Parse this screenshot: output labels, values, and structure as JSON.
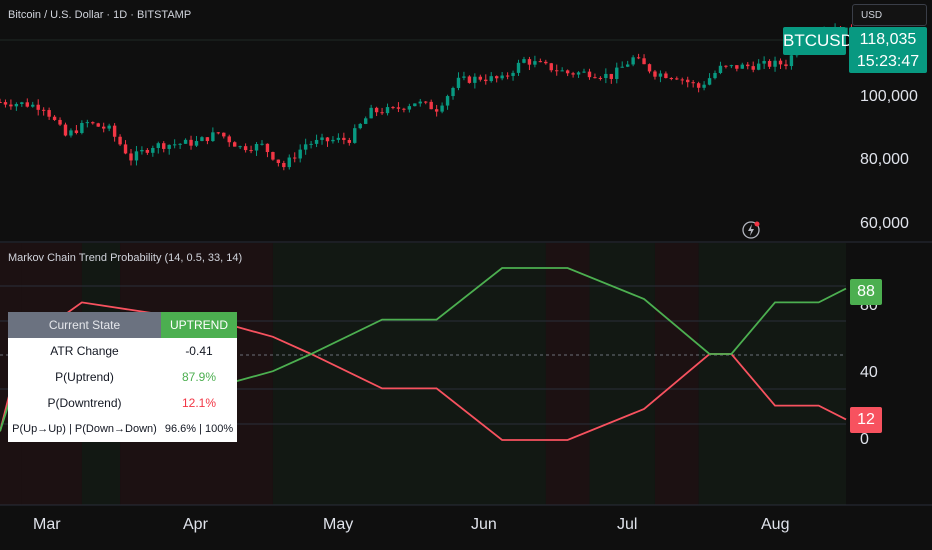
{
  "chart_title": "Bitcoin / U.S. Dollar · 1D · BITSTAMP",
  "currency": "USD",
  "symbol": "BTCUSD",
  "last_price": "118,035",
  "countdown": "15:23:47",
  "colors": {
    "up": "#089981",
    "down": "#f23645",
    "bull_line": "#4caf50",
    "bear_line": "#f7525f"
  },
  "price_axis": [
    "100,000",
    "80,000",
    "60,000"
  ],
  "indicator": {
    "title": "Markov Chain Trend Probability (14, 0.5, 33, 14)",
    "axis": [
      "80",
      "40",
      "0"
    ],
    "uptrend_badge": "88",
    "downtrend_badge": "12"
  },
  "x_axis": [
    "Mar",
    "Apr",
    "May",
    "Jun",
    "Jul",
    "Aug"
  ],
  "state_table": {
    "header_label": "Current State",
    "header_value": "UPTREND",
    "rows": [
      {
        "label": "ATR Change",
        "value": "-0.41"
      },
      {
        "label": "P(Uptrend)",
        "value": "87.9%"
      },
      {
        "label": "P(Downtrend)",
        "value": "12.1%"
      },
      {
        "label": "P(Up→Up) | P(Down→Down)",
        "value": "96.6% | 100%"
      }
    ]
  },
  "chart_data": {
    "type": "line",
    "price_ylim": [
      55000,
      125000
    ],
    "indicator_ylim": [
      0,
      100
    ],
    "price_path": [
      [
        "2025-02-14",
        96500
      ],
      [
        "2025-02-18",
        96000
      ],
      [
        "2025-02-22",
        95000
      ],
      [
        "2025-02-26",
        86000
      ],
      [
        "2025-03-02",
        90000
      ],
      [
        "2025-03-06",
        88000
      ],
      [
        "2025-03-10",
        79000
      ],
      [
        "2025-03-14",
        83000
      ],
      [
        "2025-03-18",
        83500
      ],
      [
        "2025-03-22",
        84000
      ],
      [
        "2025-03-26",
        87000
      ],
      [
        "2025-03-30",
        82500
      ],
      [
        "2025-04-03",
        83000
      ],
      [
        "2025-04-07",
        76500
      ],
      [
        "2025-04-11",
        83500
      ],
      [
        "2025-04-15",
        84500
      ],
      [
        "2025-04-19",
        85000
      ],
      [
        "2025-04-23",
        93500
      ],
      [
        "2025-04-27",
        94000
      ],
      [
        "2025-05-01",
        96500
      ],
      [
        "2025-05-05",
        94500
      ],
      [
        "2025-05-09",
        103000
      ],
      [
        "2025-05-13",
        104000
      ],
      [
        "2025-05-17",
        103500
      ],
      [
        "2025-05-21",
        109500
      ],
      [
        "2025-05-25",
        107500
      ],
      [
        "2025-05-29",
        105500
      ],
      [
        "2025-06-02",
        105500
      ],
      [
        "2025-06-06",
        104500
      ],
      [
        "2025-06-10",
        110000
      ],
      [
        "2025-06-14",
        105500
      ],
      [
        "2025-06-18",
        104500
      ],
      [
        "2025-06-22",
        101000
      ],
      [
        "2025-06-26",
        107000
      ],
      [
        "2025-06-30",
        107500
      ],
      [
        "2025-07-04",
        108000
      ],
      [
        "2025-07-08",
        108500
      ],
      [
        "2025-07-12",
        117500
      ],
      [
        "2025-07-16",
        119000
      ],
      [
        "2025-07-20",
        118000
      ],
      [
        "2025-07-24",
        118000
      ]
    ],
    "series": [
      {
        "values": [
          [
            0,
            5
          ],
          [
            4,
            55
          ],
          [
            15,
            80
          ],
          [
            42,
            67
          ],
          [
            50,
            60
          ],
          [
            57,
            50
          ],
          [
            70,
            30
          ],
          [
            80,
            30
          ],
          [
            92,
            0
          ],
          [
            104,
            0
          ],
          [
            118,
            18
          ],
          [
            130,
            50
          ],
          [
            134,
            50
          ],
          [
            142,
            20
          ],
          [
            150,
            20
          ],
          [
            155,
            12
          ]
        ]
      },
      {
        "values": [
          [
            0,
            5
          ],
          [
            4,
            45
          ],
          [
            15,
            20
          ],
          [
            42,
            33
          ],
          [
            50,
            40
          ],
          [
            57,
            50
          ],
          [
            70,
            70
          ],
          [
            80,
            70
          ],
          [
            92,
            100
          ],
          [
            104,
            100
          ],
          [
            118,
            82
          ],
          [
            130,
            50
          ],
          [
            134,
            50
          ],
          [
            142,
            80
          ],
          [
            150,
            80
          ],
          [
            155,
            88
          ]
        ]
      }
    ],
    "regimes": [
      {
        "from": 0,
        "to": 4,
        "state": "down"
      },
      {
        "from": 4,
        "to": 15,
        "state": "down"
      },
      {
        "from": 15,
        "to": 22,
        "state": "up"
      },
      {
        "from": 22,
        "to": 50,
        "state": "down"
      },
      {
        "from": 50,
        "to": 100,
        "state": "up"
      },
      {
        "from": 100,
        "to": 108,
        "state": "down"
      },
      {
        "from": 108,
        "to": 120,
        "state": "up"
      },
      {
        "from": 120,
        "to": 128,
        "state": "down"
      },
      {
        "from": 128,
        "to": 155,
        "state": "up"
      }
    ]
  }
}
